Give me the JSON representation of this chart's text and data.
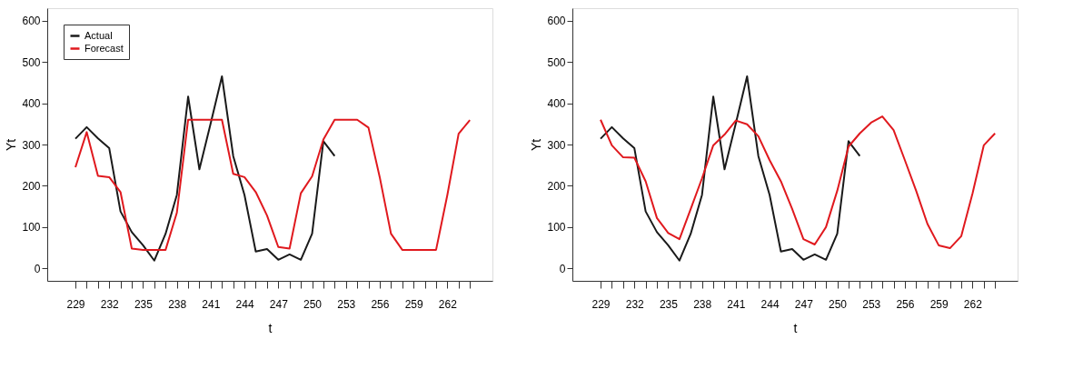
{
  "chart_data": [
    {
      "type": "line",
      "xlabel": "t",
      "ylabel": "Yt",
      "legend": "top left",
      "grid": false,
      "line_style": "solid",
      "marker": "none",
      "xlim": [
        226.5,
        266
      ],
      "ylim": [
        -30,
        630
      ],
      "yticks": [
        0,
        100,
        200,
        300,
        400,
        500,
        600
      ],
      "xticks": [
        229,
        {
          "value": 230,
          "label": null
        },
        {
          "value": 231,
          "label": null
        },
        232,
        {
          "value": 233,
          "label": null
        },
        {
          "value": 234,
          "label": null
        },
        235,
        {
          "value": 236,
          "label": null
        },
        {
          "value": 237,
          "label": null
        },
        238,
        {
          "value": 239,
          "label": null
        },
        {
          "value": 240,
          "label": null
        },
        241,
        {
          "value": 242,
          "label": null
        },
        {
          "value": 243,
          "label": null
        },
        244,
        {
          "value": 245,
          "label": null
        },
        {
          "value": 246,
          "label": null
        },
        247,
        {
          "value": 248,
          "label": null
        },
        {
          "value": 249,
          "label": null
        },
        250,
        {
          "value": 251,
          "label": null
        },
        {
          "value": 252,
          "label": null
        },
        253,
        {
          "value": 254,
          "label": null
        },
        {
          "value": 255,
          "label": null
        },
        256,
        {
          "value": 257,
          "label": null
        },
        {
          "value": 258,
          "label": null
        },
        259,
        {
          "value": 260,
          "label": null
        },
        {
          "value": 261,
          "label": null
        },
        262,
        {
          "value": 263,
          "label": null
        },
        {
          "value": 264,
          "label": null
        }
      ],
      "series": [
        {
          "name": "Actual",
          "color": "#1a1a1a",
          "x": [
            229,
            230,
            231,
            232,
            233,
            234,
            235,
            236,
            237,
            238,
            239,
            240,
            241,
            242,
            243,
            244,
            245,
            246,
            247,
            248,
            249,
            250,
            251,
            252
          ],
          "values": [
            314,
            342,
            315,
            291,
            138,
            88,
            56,
            19,
            84,
            178,
            416,
            240,
            351,
            465,
            272,
            178,
            41,
            47,
            21,
            34,
            21,
            84,
            308,
            272
          ]
        },
        {
          "name": "Forecast",
          "color": "#e0191e",
          "x": [
            229,
            230,
            231,
            232,
            233,
            234,
            235,
            236,
            237,
            238,
            239,
            240,
            241,
            242,
            243,
            244,
            245,
            246,
            247,
            248,
            249,
            250,
            251,
            252,
            253,
            254,
            255,
            256,
            257,
            258,
            259,
            260,
            261,
            262,
            263,
            264
          ],
          "values": [
            245,
            330,
            224,
            221,
            185,
            48,
            45,
            45,
            45,
            135,
            360,
            360,
            360,
            360,
            229,
            221,
            185,
            128,
            52,
            48,
            182,
            223,
            312,
            360,
            360,
            360,
            341,
            221,
            84,
            45,
            45,
            45,
            45,
            178,
            326,
            359
          ]
        }
      ]
    },
    {
      "type": "line",
      "xlabel": "t",
      "ylabel": "Yt",
      "legend": "top left",
      "grid": false,
      "line_style": "solid",
      "marker": "none",
      "xlim": [
        226.5,
        266
      ],
      "ylim": [
        -30,
        630
      ],
      "yticks": [
        0,
        100,
        200,
        300,
        400,
        500,
        600
      ],
      "xticks": [
        229,
        {
          "value": 230,
          "label": null
        },
        {
          "value": 231,
          "label": null
        },
        232,
        {
          "value": 233,
          "label": null
        },
        {
          "value": 234,
          "label": null
        },
        235,
        {
          "value": 236,
          "label": null
        },
        {
          "value": 237,
          "label": null
        },
        238,
        {
          "value": 239,
          "label": null
        },
        {
          "value": 240,
          "label": null
        },
        241,
        {
          "value": 242,
          "label": null
        },
        {
          "value": 243,
          "label": null
        },
        244,
        {
          "value": 245,
          "label": null
        },
        {
          "value": 246,
          "label": null
        },
        247,
        {
          "value": 248,
          "label": null
        },
        {
          "value": 249,
          "label": null
        },
        250,
        {
          "value": 251,
          "label": null
        },
        {
          "value": 252,
          "label": null
        },
        253,
        {
          "value": 254,
          "label": null
        },
        {
          "value": 255,
          "label": null
        },
        256,
        {
          "value": 257,
          "label": null
        },
        {
          "value": 258,
          "label": null
        },
        259,
        {
          "value": 260,
          "label": null
        },
        {
          "value": 261,
          "label": null
        },
        262,
        {
          "value": 263,
          "label": null
        },
        {
          "value": 264,
          "label": null
        }
      ],
      "series": [
        {
          "name": "Actual",
          "color": "#1a1a1a",
          "x": [
            229,
            230,
            231,
            232,
            233,
            234,
            235,
            236,
            237,
            238,
            239,
            240,
            241,
            242,
            243,
            244,
            245,
            246,
            247,
            248,
            249,
            250,
            251,
            252
          ],
          "values": [
            314,
            342,
            315,
            291,
            138,
            88,
            56,
            19,
            84,
            178,
            416,
            240,
            351,
            465,
            272,
            178,
            41,
            47,
            21,
            34,
            21,
            84,
            308,
            272
          ]
        },
        {
          "name": "Forecast",
          "color": "#e0191e",
          "x": [
            229,
            230,
            231,
            232,
            233,
            234,
            235,
            236,
            237,
            238,
            239,
            240,
            241,
            242,
            243,
            244,
            245,
            246,
            247,
            248,
            249,
            250,
            251,
            252,
            253,
            254,
            255,
            256,
            257,
            258,
            259,
            260,
            261,
            262,
            263,
            264
          ],
          "values": [
            360,
            298,
            269,
            268,
            211,
            122,
            86,
            71,
            144,
            218,
            298,
            324,
            358,
            349,
            320,
            262,
            211,
            144,
            71,
            58,
            100,
            188,
            295,
            327,
            353,
            368,
            335,
            262,
            188,
            108,
            56,
            49,
            78,
            181,
            298,
            327
          ]
        }
      ]
    }
  ]
}
